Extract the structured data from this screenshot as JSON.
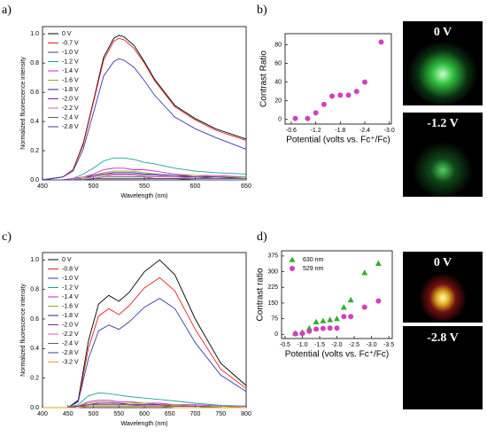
{
  "chart_data": [
    {
      "type": "line",
      "panel_label": "a)",
      "xlabel": "Wavelength (nm)",
      "ylabel": "Normalized fluorescence intensity",
      "x": [
        450,
        470,
        480,
        490,
        500,
        510,
        520,
        525,
        530,
        540,
        550,
        560,
        580,
        600,
        620,
        650
      ],
      "xlim": [
        450,
        650
      ],
      "xticks": [
        450,
        500,
        550,
        600,
        650
      ],
      "ylim": [
        0,
        1.05
      ],
      "yticks": [
        {
          "value": 0,
          "label": "0.0"
        },
        0.2,
        0.4,
        0.6,
        0.8,
        {
          "value": 1,
          "label": "1.0"
        }
      ],
      "grid": false,
      "legend": "upper left",
      "series": [
        {
          "name": "0 V",
          "color": "#000000",
          "values": [
            0,
            0.02,
            0.07,
            0.25,
            0.54,
            0.84,
            0.97,
            0.99,
            0.98,
            0.92,
            0.81,
            0.69,
            0.51,
            0.42,
            0.35,
            0.28
          ]
        },
        {
          "name": "-0.7 V",
          "color": "#e02020",
          "values": [
            0,
            0.02,
            0.07,
            0.24,
            0.53,
            0.82,
            0.95,
            0.97,
            0.96,
            0.9,
            0.8,
            0.68,
            0.5,
            0.41,
            0.34,
            0.27
          ]
        },
        {
          "name": "-1.0 V",
          "color": "#3a3aa8",
          "values": [
            0,
            0.02,
            0.06,
            0.21,
            0.46,
            0.71,
            0.81,
            0.83,
            0.82,
            0.77,
            0.68,
            0.58,
            0.43,
            0.35,
            0.29,
            0.21
          ]
        },
        {
          "name": "-1.2 V",
          "color": "#20a0a0",
          "values": [
            0,
            0,
            0.01,
            0.04,
            0.08,
            0.13,
            0.15,
            0.15,
            0.15,
            0.14,
            0.12,
            0.11,
            0.08,
            0.06,
            0.05,
            0.04
          ]
        },
        {
          "name": "-1.4 V",
          "color": "#d020d0",
          "values": [
            0,
            0,
            0.01,
            0.02,
            0.04,
            0.07,
            0.08,
            0.08,
            0.08,
            0.07,
            0.07,
            0.06,
            0.04,
            0.03,
            0.03,
            0.02
          ]
        },
        {
          "name": "-1.6 V",
          "color": "#a0a020",
          "values": [
            0,
            0,
            0,
            0.02,
            0.03,
            0.05,
            0.06,
            0.06,
            0.06,
            0.06,
            0.05,
            0.04,
            0.03,
            0.03,
            0.02,
            0.02
          ]
        },
        {
          "name": "-1.8 V",
          "color": "#202080",
          "values": [
            0,
            0,
            0,
            0.01,
            0.03,
            0.04,
            0.05,
            0.05,
            0.05,
            0.05,
            0.04,
            0.04,
            0.03,
            0.02,
            0.02,
            0.01
          ]
        },
        {
          "name": "-2.0 V",
          "color": "#8020a0",
          "values": [
            0,
            0,
            0,
            0.01,
            0.02,
            0.03,
            0.04,
            0.04,
            0.04,
            0.04,
            0.03,
            0.03,
            0.02,
            0.02,
            0.01,
            0.01
          ]
        },
        {
          "name": "-2.2 V",
          "color": "#e060a0",
          "values": [
            0,
            0,
            0,
            0.01,
            0.02,
            0.03,
            0.03,
            0.03,
            0.03,
            0.03,
            0.02,
            0.02,
            0.02,
            0.01,
            0.01,
            0.01
          ]
        },
        {
          "name": "-2.4 V",
          "color": "#606060",
          "values": [
            0,
            0,
            0,
            0,
            0.01,
            0.02,
            0.02,
            0.02,
            0.02,
            0.02,
            0.02,
            0.01,
            0.01,
            0.01,
            0.01,
            0.01
          ]
        },
        {
          "name": "-2.8 V",
          "color": "#404090",
          "values": [
            0,
            0,
            0,
            0,
            0.01,
            0.01,
            0.01,
            0.01,
            0.01,
            0.01,
            0.01,
            0.01,
            0.01,
            0,
            0,
            0
          ]
        }
      ]
    },
    {
      "type": "scatter",
      "panel_label": "b)",
      "xlabel": "Potential (volts vs. Fc⁺/Fc)",
      "ylabel": "Contrast Ratio",
      "x": [
        -0.7,
        -1.0,
        -1.2,
        -1.4,
        -1.6,
        -1.8,
        -2.0,
        -2.2,
        -2.4,
        -2.8
      ],
      "xlim": [
        -0.45,
        -3.05
      ],
      "xticks": [
        -0.6,
        -1.2,
        -1.8,
        -2.4,
        {
          "value": -3,
          "label": "-3.0"
        }
      ],
      "ylim": [
        -5,
        92
      ],
      "yticks": [
        0,
        20,
        40,
        60,
        80
      ],
      "grid": false,
      "series": [
        {
          "color": "#d040c0",
          "marker": "circle",
          "values": [
            1,
            1,
            7,
            16,
            25,
            26,
            26,
            30,
            40,
            83
          ]
        }
      ]
    },
    {
      "type": "line",
      "panel_label": "c)",
      "xlabel": "Wavelength (nm)",
      "ylabel": "Normalized fluorescence intensity",
      "x": [
        400,
        450,
        470,
        490,
        510,
        530,
        550,
        570,
        600,
        630,
        660,
        700,
        750,
        800
      ],
      "xlim": [
        400,
        800
      ],
      "xticks": [
        400,
        450,
        500,
        550,
        600,
        650,
        700,
        750,
        800
      ],
      "ylim": [
        0,
        1.05
      ],
      "yticks": [
        {
          "value": 0,
          "label": "0.0"
        },
        0.2,
        0.4,
        0.6,
        0.8,
        {
          "value": 1,
          "label": "1.0"
        }
      ],
      "grid": false,
      "legend": "upper left",
      "series": [
        {
          "name": "0 V",
          "color": "#000000",
          "values": [
            0,
            0,
            0.05,
            0.45,
            0.7,
            0.76,
            0.72,
            0.78,
            0.92,
            1.0,
            0.9,
            0.6,
            0.3,
            0.15
          ]
        },
        {
          "name": "-0.8 V",
          "color": "#e02020",
          "values": [
            0,
            0,
            0.04,
            0.4,
            0.62,
            0.67,
            0.63,
            0.69,
            0.81,
            0.88,
            0.79,
            0.53,
            0.26,
            0.13
          ]
        },
        {
          "name": "-1.0 V",
          "color": "#3a3aa8",
          "values": [
            0,
            0,
            0.04,
            0.33,
            0.52,
            0.56,
            0.53,
            0.58,
            0.68,
            0.74,
            0.67,
            0.44,
            0.22,
            0.11
          ]
        },
        {
          "name": "-1.2 V",
          "color": "#20a0a0",
          "values": [
            0,
            0,
            0.02,
            0.08,
            0.1,
            0.095,
            0.085,
            0.075,
            0.065,
            0.055,
            0.045,
            0.03,
            0.015,
            0.01
          ]
        },
        {
          "name": "-1.4 V",
          "color": "#d020d0",
          "values": [
            0,
            0,
            0.01,
            0.04,
            0.05,
            0.05,
            0.04,
            0.04,
            0.03,
            0.03,
            0.02,
            0.02,
            0.01,
            0.01
          ]
        },
        {
          "name": "-1.6 V",
          "color": "#a0a020",
          "values": [
            0,
            0,
            0.01,
            0.03,
            0.04,
            0.04,
            0.03,
            0.03,
            0.03,
            0.02,
            0.02,
            0.01,
            0.01,
            0
          ]
        },
        {
          "name": "-1.8 V",
          "color": "#202080",
          "values": [
            0,
            0,
            0.01,
            0.02,
            0.03,
            0.03,
            0.03,
            0.02,
            0.02,
            0.02,
            0.01,
            0.01,
            0,
            0
          ]
        },
        {
          "name": "-2.0 V",
          "color": "#8020a0",
          "values": [
            0,
            0,
            0.01,
            0.02,
            0.03,
            0.03,
            0.03,
            0.02,
            0.02,
            0.02,
            0.01,
            0.01,
            0,
            0
          ]
        },
        {
          "name": "-2.2 V",
          "color": "#e060a0",
          "values": [
            0,
            0,
            0,
            0.02,
            0.02,
            0.02,
            0.02,
            0.02,
            0.01,
            0.01,
            0.01,
            0.01,
            0,
            0
          ]
        },
        {
          "name": "-2.4 V",
          "color": "#606060",
          "values": [
            0,
            0,
            0,
            0.02,
            0.02,
            0.02,
            0.02,
            0.02,
            0.01,
            0.01,
            0.01,
            0.01,
            0,
            0
          ]
        },
        {
          "name": "-2.8 V",
          "color": "#404090",
          "values": [
            0,
            0,
            0,
            0.01,
            0.01,
            0.01,
            0.01,
            0.01,
            0.01,
            0.01,
            0,
            0,
            0,
            0
          ]
        },
        {
          "name": "-3.2 V",
          "color": "#e0a020",
          "values": [
            0,
            0,
            0,
            0.01,
            0.01,
            0.01,
            0.01,
            0.01,
            0.01,
            0.01,
            0,
            0,
            0,
            0
          ]
        }
      ]
    },
    {
      "type": "scatter",
      "panel_label": "d)",
      "xlabel": "Potential (volts vs. Fc⁺/Fc)",
      "ylabel": "Contrast ratio",
      "x": [
        -0.8,
        -1.0,
        -1.2,
        -1.4,
        -1.6,
        -1.8,
        -2.0,
        -2.2,
        -2.4,
        -2.8,
        -3.2
      ],
      "xlim": [
        -0.4,
        -3.6
      ],
      "xticks": [
        -0.5,
        {
          "value": -1,
          "label": "-1.0"
        },
        -1.5,
        {
          "value": -2,
          "label": "-2.0"
        },
        -2.5,
        {
          "value": -3,
          "label": "-3.0"
        },
        -3.5
      ],
      "ylim": [
        -20,
        400
      ],
      "yticks": [
        0,
        75,
        150,
        225,
        300,
        375
      ],
      "grid": false,
      "legend": "upper left",
      "series": [
        {
          "name": "630 nm",
          "color": "#30b030",
          "marker": "triangle",
          "values": [
            5,
            10,
            30,
            60,
            65,
            70,
            75,
            130,
            165,
            295,
            340
          ]
        },
        {
          "name": "529 nm",
          "color": "#d040c0",
          "marker": "circle",
          "values": [
            3,
            5,
            15,
            25,
            28,
            30,
            30,
            85,
            85,
            130,
            160
          ]
        }
      ]
    }
  ],
  "images": [
    {
      "label": "0 V"
    },
    {
      "label": "-1.2 V"
    },
    {
      "label": "0 V"
    },
    {
      "label": "-2.8 V"
    }
  ]
}
